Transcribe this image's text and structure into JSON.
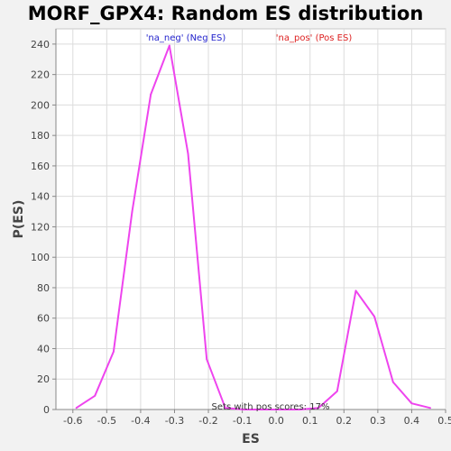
{
  "chart_data": {
    "type": "line",
    "title": "MORF_GPX4: Random ES distribution",
    "xlabel": "ES",
    "ylabel": "P(ES)",
    "xlim": [
      -0.65,
      0.5
    ],
    "ylim": [
      0,
      250
    ],
    "x_ticks": [
      -0.6,
      -0.5,
      -0.4,
      -0.3,
      -0.2,
      -0.1,
      0.0,
      0.1,
      0.2,
      0.3,
      0.4,
      0.5
    ],
    "x_tick_labels": [
      "-0.6",
      "-0.5",
      "-0.4",
      "-0.3",
      "-0.2",
      "-0.1",
      "0.0",
      "0.1",
      "0.2",
      "0.3",
      "0.4",
      "0.5"
    ],
    "y_ticks": [
      0,
      20,
      40,
      60,
      80,
      100,
      120,
      140,
      160,
      180,
      200,
      220,
      240
    ],
    "y_tick_labels": [
      "0",
      "20",
      "40",
      "60",
      "80",
      "100",
      "120",
      "140",
      "160",
      "180",
      "200",
      "220",
      "240"
    ],
    "grid": true,
    "series": [
      {
        "color": "#ee44ee",
        "x": [
          -0.59,
          -0.535,
          -0.48,
          -0.425,
          -0.37,
          -0.315,
          -0.26,
          -0.205,
          -0.15,
          -0.095,
          -0.04,
          0.015,
          0.07,
          0.125,
          0.18,
          0.235,
          0.29,
          0.345,
          0.4,
          0.455
        ],
        "y": [
          1,
          9,
          38,
          130,
          207,
          239,
          168,
          33,
          1,
          0,
          0,
          0,
          0,
          1,
          12,
          78,
          61,
          18,
          4,
          1
        ]
      }
    ],
    "legend": [
      {
        "label": "'na_neg' (Neg ES)",
        "color": "#2222cc"
      },
      {
        "label": "'na_pos' (Pos ES)",
        "color": "#dd2222"
      }
    ],
    "legend_placement": "top",
    "annotation": "Sets with pos scores: 17%"
  }
}
